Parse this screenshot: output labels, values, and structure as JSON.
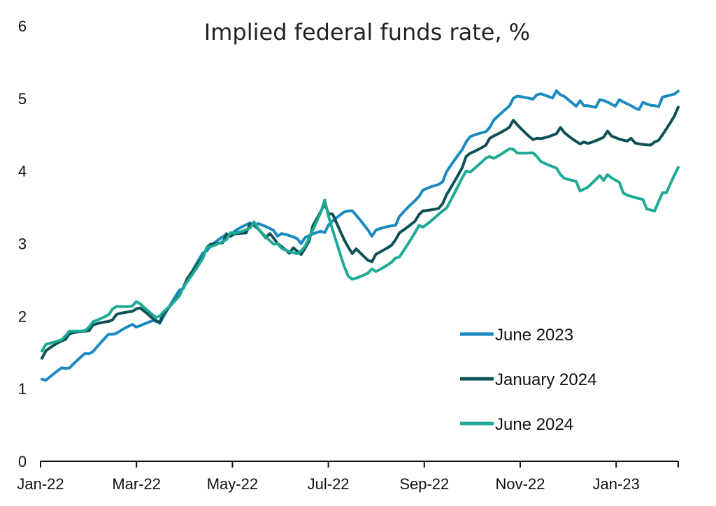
{
  "chart_data": {
    "type": "line",
    "title": "Implied federal funds rate, %",
    "xlabel": "",
    "ylabel": "",
    "ylim": [
      0,
      6
    ],
    "yticks": [
      "0",
      "1",
      "2",
      "3",
      "4",
      "5",
      "6"
    ],
    "xticks": [
      "Jan-22",
      "Mar-22",
      "May-22",
      "Jul-22",
      "Sep-22",
      "Nov-22",
      "Jan-23"
    ],
    "x": [
      "Jan-22",
      "Jan-22",
      "Feb-22",
      "Feb-22",
      "Mar-22",
      "Mar-22",
      "Apr-22",
      "Apr-22",
      "May-22",
      "May-22",
      "Jun-22",
      "Jun-22",
      "Jul-22",
      "Jul-22",
      "Aug-22",
      "Aug-22",
      "Sep-22",
      "Sep-22",
      "Oct-22",
      "Oct-22",
      "Nov-22",
      "Nov-22",
      "Dec-22",
      "Dec-22",
      "Jan-23",
      "Jan-23",
      "Feb-23",
      "Feb-23"
    ],
    "series": [
      {
        "name": "June 2023",
        "color": "#1a8ac0",
        "values": [
          1.13,
          1.28,
          1.48,
          1.75,
          1.85,
          1.9,
          2.38,
          2.9,
          3.1,
          3.25,
          3.1,
          3.0,
          3.15,
          3.45,
          3.1,
          3.25,
          3.65,
          3.85,
          4.4,
          4.6,
          5.0,
          5.05,
          5.05,
          4.9,
          4.95,
          4.9,
          4.9,
          5.1
        ]
      },
      {
        "name": "January 2024",
        "color": "#0d5055",
        "values": [
          1.42,
          1.68,
          1.8,
          1.95,
          2.1,
          1.92,
          2.4,
          2.95,
          3.1,
          3.25,
          3.0,
          2.85,
          3.55,
          2.95,
          2.75,
          3.05,
          3.4,
          3.55,
          4.2,
          4.45,
          4.7,
          4.45,
          4.6,
          4.4,
          4.55,
          4.45,
          4.4,
          4.88
        ]
      },
      {
        "name": "June 2024",
        "color": "#1eaa94",
        "values": [
          1.52,
          1.73,
          1.85,
          2.1,
          2.2,
          2.0,
          2.4,
          2.95,
          3.15,
          3.3,
          3.0,
          2.9,
          3.6,
          2.55,
          2.65,
          2.8,
          3.25,
          3.45,
          4.0,
          4.2,
          4.3,
          4.2,
          3.95,
          3.75,
          3.95,
          3.65,
          3.45,
          4.05
        ]
      }
    ],
    "legend": [
      "June 2023",
      "January 2024",
      "June 2024"
    ],
    "legend_position": "bottom-right",
    "grid": false
  }
}
